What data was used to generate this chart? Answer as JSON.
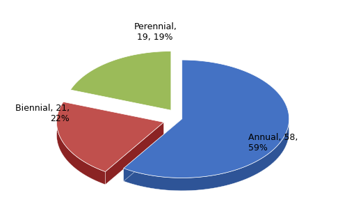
{
  "labels": [
    "Annual, 58,\n59%",
    "Biennial, 21,\n22%",
    "Perennial,\n19, 19%"
  ],
  "values": [
    58,
    21,
    19
  ],
  "colors_top": [
    "#4472C4",
    "#C0504D",
    "#9BBB59"
  ],
  "colors_side": [
    "#2E5497",
    "#8B2323",
    "#6B8E23"
  ],
  "explode": [
    0.0,
    0.18,
    0.18
  ],
  "startangle": 90,
  "background_color": "#FFFFFF",
  "depth": 0.12,
  "yscale": 0.55
}
